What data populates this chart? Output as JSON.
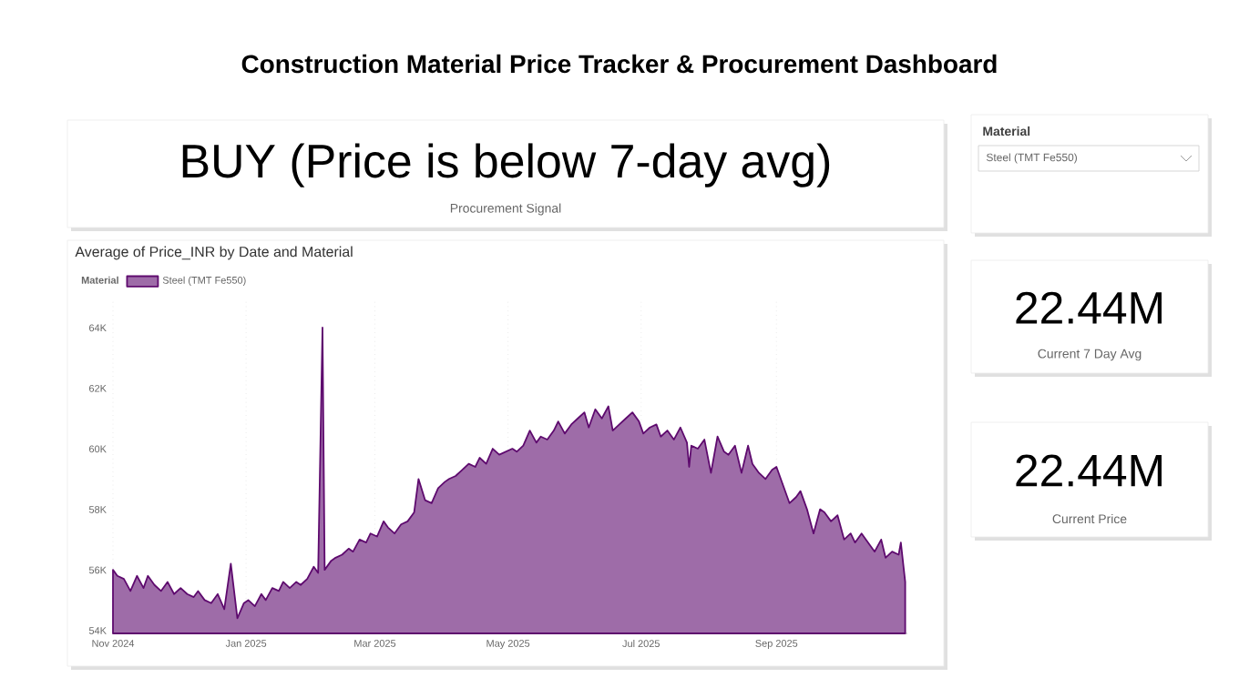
{
  "chart_data": [
    {
      "type": "other",
      "title": "Construction Material Price Tracker & Procurement Dashboard"
    },
    {
      "type": "other",
      "title": "BUY (Price is below 7-day avg)",
      "subtitle": "Procurement Signal"
    },
    {
      "type": "other",
      "title": "Material",
      "annotations": [
        "Steel (TMT Fe550)"
      ]
    },
    {
      "type": "area",
      "title": "Average of Price_INR by Date and Material",
      "legend_title": "Material",
      "legend": "top left",
      "grid": "x",
      "xlim": [
        "2024-11-01",
        "2025-10-31"
      ],
      "ylim": [
        54000,
        65000
      ],
      "xticks": [
        {
          "value": "2024-11-01",
          "label": "Nov 2024"
        },
        {
          "value": "2025-01-01",
          "label": "Jan 2025"
        },
        {
          "value": "2025-03-01",
          "label": "Mar 2025"
        },
        {
          "value": "2025-05-01",
          "label": "May 2025"
        },
        {
          "value": "2025-07-01",
          "label": "Jul 2025"
        },
        {
          "value": "2025-09-01",
          "label": "Sep 2025"
        }
      ],
      "yticks": [
        {
          "value": 54000,
          "label": "54K"
        },
        {
          "value": 56000,
          "label": "56K"
        },
        {
          "value": 58000,
          "label": "58K"
        },
        {
          "value": 60000,
          "label": "60K"
        },
        {
          "value": 62000,
          "label": "62K"
        },
        {
          "value": 64000,
          "label": "64K"
        }
      ],
      "series": [
        {
          "name": "Steel (TMT Fe550)",
          "color": "#5e0a6e",
          "x": [
            "2024-11-01",
            "2024-11-03",
            "2024-11-06",
            "2024-11-09",
            "2024-11-12",
            "2024-11-15",
            "2024-11-17",
            "2024-11-20",
            "2024-11-23",
            "2024-11-26",
            "2024-11-29",
            "2024-12-02",
            "2024-12-05",
            "2024-12-08",
            "2024-12-10",
            "2024-12-13",
            "2024-12-16",
            "2024-12-19",
            "2024-12-22",
            "2024-12-25",
            "2024-12-28",
            "2024-12-31",
            "2025-01-02",
            "2025-01-05",
            "2025-01-08",
            "2025-01-10",
            "2025-01-13",
            "2025-01-16",
            "2025-01-18",
            "2025-01-21",
            "2025-01-24",
            "2025-01-26",
            "2025-01-29",
            "2025-02-01",
            "2025-02-03",
            "2025-02-05",
            "2025-02-06",
            "2025-02-09",
            "2025-02-11",
            "2025-02-14",
            "2025-02-17",
            "2025-02-19",
            "2025-02-22",
            "2025-02-25",
            "2025-02-27",
            "2025-03-02",
            "2025-03-05",
            "2025-03-07",
            "2025-03-10",
            "2025-03-13",
            "2025-03-16",
            "2025-03-19",
            "2025-03-21",
            "2025-03-24",
            "2025-03-27",
            "2025-03-30",
            "2025-04-02",
            "2025-04-04",
            "2025-04-07",
            "2025-04-10",
            "2025-04-13",
            "2025-04-16",
            "2025-04-18",
            "2025-04-21",
            "2025-04-24",
            "2025-04-27",
            "2025-05-03",
            "2025-05-05",
            "2025-05-08",
            "2025-05-11",
            "2025-05-14",
            "2025-05-16",
            "2025-05-19",
            "2025-05-22",
            "2025-05-24",
            "2025-05-27",
            "2025-05-30",
            "2025-06-02",
            "2025-06-05",
            "2025-06-07",
            "2025-06-10",
            "2025-06-13",
            "2025-06-16",
            "2025-06-18",
            "2025-06-21",
            "2025-06-24",
            "2025-06-27",
            "2025-06-30",
            "2025-07-02",
            "2025-07-05",
            "2025-07-08",
            "2025-07-10",
            "2025-07-13",
            "2025-07-16",
            "2025-07-19",
            "2025-07-22",
            "2025-07-23",
            "2025-07-24",
            "2025-07-27",
            "2025-07-30",
            "2025-08-02",
            "2025-08-05",
            "2025-08-08",
            "2025-08-10",
            "2025-08-13",
            "2025-08-16",
            "2025-08-19",
            "2025-08-21",
            "2025-08-24",
            "2025-08-27",
            "2025-08-30",
            "2025-09-01",
            "2025-09-04",
            "2025-09-07",
            "2025-09-10",
            "2025-09-12",
            "2025-09-15",
            "2025-09-18",
            "2025-09-21",
            "2025-09-23",
            "2025-09-26",
            "2025-09-29",
            "2025-10-02",
            "2025-10-05",
            "2025-10-07",
            "2025-10-10",
            "2025-10-13",
            "2025-10-16",
            "2025-10-19",
            "2025-10-21",
            "2025-10-24",
            "2025-10-27",
            "2025-10-28",
            "2025-10-30"
          ],
          "values": [
            56100,
            55900,
            55800,
            55400,
            55900,
            55500,
            55900,
            55600,
            55400,
            55700,
            55300,
            55500,
            55300,
            55200,
            55400,
            55100,
            55000,
            55300,
            54800,
            56300,
            54500,
            55000,
            55100,
            54900,
            55300,
            55100,
            55500,
            55400,
            55700,
            55500,
            55700,
            55600,
            55800,
            56200,
            56000,
            64100,
            56100,
            56400,
            56500,
            56600,
            56800,
            56700,
            57100,
            57000,
            57300,
            57200,
            57700,
            57500,
            57300,
            57600,
            57700,
            58000,
            59100,
            58400,
            58300,
            58800,
            59000,
            59100,
            59200,
            59400,
            59600,
            59500,
            59800,
            59600,
            60100,
            59900,
            60100,
            60000,
            60200,
            60700,
            60300,
            60500,
            60400,
            60700,
            61000,
            60600,
            60900,
            61100,
            61300,
            60800,
            61400,
            61100,
            61500,
            60700,
            60900,
            61100,
            61300,
            61000,
            60600,
            60800,
            60900,
            60500,
            60700,
            60400,
            60800,
            60300,
            59500,
            60200,
            60100,
            60400,
            59300,
            60500,
            60000,
            59900,
            60200,
            59300,
            60200,
            59600,
            59300,
            59100,
            59400,
            59500,
            58900,
            58300,
            58500,
            58700,
            58100,
            57300,
            58100,
            58000,
            57700,
            57900,
            57100,
            57300,
            57000,
            57300,
            57000,
            56700,
            57100,
            56500,
            56700,
            56600,
            57000,
            55700
          ]
        }
      ]
    },
    {
      "type": "other",
      "title": "22.44M",
      "subtitle": "Current 7 Day Avg"
    },
    {
      "type": "other",
      "title": "22.44M",
      "subtitle": "Current Price"
    }
  ]
}
